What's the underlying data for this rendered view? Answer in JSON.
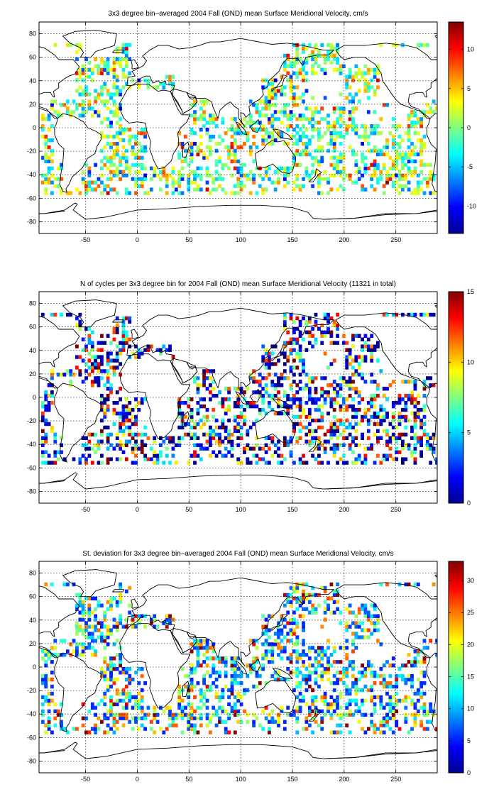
{
  "chart_data": [
    {
      "type": "heatmap",
      "title": "3x3 degree bin–averaged 2004 Fall (OND) mean Surface Meridional Velocity, cm/s",
      "xlabel": "",
      "ylabel": "",
      "xlim": [
        -95,
        290
      ],
      "ylim": [
        -90,
        90
      ],
      "xticks": [
        "-50",
        "0",
        "50",
        "100",
        "150",
        "200",
        "250"
      ],
      "yticks": [
        "80",
        "60",
        "40",
        "20",
        "0",
        "-20",
        "-40",
        "-60",
        "-80"
      ],
      "grid": true,
      "colormap": "jet",
      "colorbar": {
        "range": [
          -13.5,
          13.5
        ],
        "ticks": [
          "10",
          "5",
          "0",
          "-5",
          "-10"
        ],
        "placement": "right"
      },
      "bin_size_deg": 3
    },
    {
      "type": "heatmap",
      "title": "N of cycles per 3x3 degree bin for 2004 Fall (OND) mean Surface Meridional Velocity (11321 in total)",
      "xlabel": "",
      "ylabel": "",
      "xlim": [
        -95,
        290
      ],
      "ylim": [
        -90,
        90
      ],
      "xticks": [
        "-50",
        "0",
        "50",
        "100",
        "150",
        "200",
        "250"
      ],
      "yticks": [
        "80",
        "60",
        "40",
        "20",
        "0",
        "-20",
        "-40",
        "-60",
        "-80"
      ],
      "grid": true,
      "colormap": "jet",
      "colorbar": {
        "range": [
          0,
          15
        ],
        "ticks": [
          "15",
          "10",
          "5",
          "0"
        ],
        "placement": "right"
      },
      "bin_size_deg": 3
    },
    {
      "type": "heatmap",
      "title": "St. deviation for 3x3 degree bin–averaged 2004 Fall (OND) mean Surface Meridional Velocity, cm/s",
      "xlabel": "",
      "ylabel": "",
      "xlim": [
        -95,
        290
      ],
      "ylim": [
        -90,
        90
      ],
      "xticks": [
        "-50",
        "0",
        "50",
        "100",
        "150",
        "200",
        "250"
      ],
      "yticks": [
        "80",
        "60",
        "40",
        "20",
        "0",
        "-20",
        "-40",
        "-60",
        "-80"
      ],
      "grid": true,
      "colormap": "jet",
      "colorbar": {
        "range": [
          0,
          33
        ],
        "ticks": [
          "30",
          "25",
          "20",
          "15",
          "10",
          "5",
          "0"
        ],
        "placement": "right"
      },
      "bin_size_deg": 3
    }
  ]
}
